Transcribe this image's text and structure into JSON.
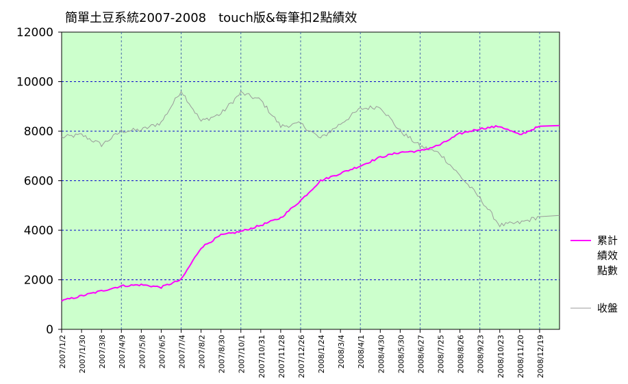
{
  "chart_data": {
    "type": "line",
    "title": "簡單土豆系統2007-2008　touch版&每筆扣2點績效",
    "xlabel": "",
    "ylabel": "",
    "ylim": [
      0,
      12000
    ],
    "yticks": [
      "0",
      "2000",
      "4000",
      "6000",
      "8000",
      "10000",
      "12000"
    ],
    "x_tick_labels": [
      "2007/1/2",
      "2007/1/30",
      "2007/3/8",
      "2007/4/9",
      "2007/5/8",
      "2007/6/5",
      "2007/7/4",
      "2007/8/2",
      "2007/8/30",
      "2007/10/1",
      "2007/10/31",
      "2007/11/28",
      "2007/12/26",
      "2008/1/24",
      "2008/3/4",
      "2008/4/1",
      "2008/4/30",
      "2008/5/30",
      "2008/6/27",
      "2008/7/25",
      "2008/8/26",
      "2008/9/23",
      "2008/10/23",
      "2008/11/20",
      "2008/12/19"
    ],
    "grid": true,
    "legend_position": "right",
    "background_color": "#ccffcc",
    "series": [
      {
        "name": "累計\n績效\n點數",
        "legend_lines": [
          "累計",
          "績效",
          "點數"
        ],
        "color": "#ff00ff",
        "x": [
          "2007/1/2",
          "2007/1/30",
          "2007/3/8",
          "2007/4/9",
          "2007/5/8",
          "2007/6/5",
          "2007/7/4",
          "2007/8/2",
          "2007/8/30",
          "2007/10/1",
          "2007/10/31",
          "2007/11/28",
          "2007/12/26",
          "2008/1/24",
          "2008/3/4",
          "2008/4/1",
          "2008/4/30",
          "2008/5/30",
          "2008/6/27",
          "2008/7/25",
          "2008/8/26",
          "2008/9/23",
          "2008/10/23",
          "2008/11/20",
          "2008/12/19"
        ],
        "values": [
          1150,
          1350,
          1550,
          1750,
          1800,
          1700,
          2000,
          3300,
          3800,
          3950,
          4200,
          4500,
          5200,
          6000,
          6300,
          6600,
          6950,
          7150,
          7200,
          7450,
          7900,
          8100,
          8200,
          7850,
          8200
        ]
      },
      {
        "name": "收盤",
        "legend_lines": [
          "收盤"
        ],
        "color": "#999999",
        "x": [
          "2007/1/2",
          "2007/1/30",
          "2007/3/8",
          "2007/4/9",
          "2007/5/8",
          "2007/6/5",
          "2007/7/4",
          "2007/8/2",
          "2007/8/30",
          "2007/10/1",
          "2007/10/31",
          "2007/11/28",
          "2007/12/26",
          "2008/1/24",
          "2008/3/4",
          "2008/4/1",
          "2008/4/30",
          "2008/5/30",
          "2008/6/27",
          "2008/7/25",
          "2008/8/26",
          "2008/9/23",
          "2008/10/23",
          "2008/11/20",
          "2008/12/19"
        ],
        "values": [
          7750,
          7850,
          7450,
          8000,
          8050,
          8350,
          9650,
          8400,
          8700,
          9550,
          9250,
          8200,
          8300,
          7700,
          8300,
          8900,
          9000,
          8000,
          7400,
          7100,
          6200,
          5300,
          4200,
          4300,
          4550
        ]
      }
    ]
  }
}
